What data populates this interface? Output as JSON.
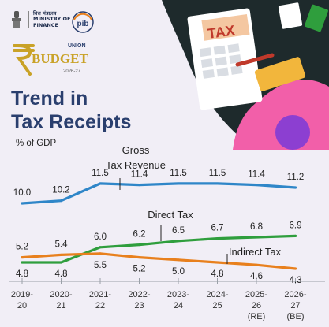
{
  "header": {
    "ministry_hindi": "वित्त मंत्रालय",
    "ministry_line1": "MINISTRY OF",
    "ministry_line2": "FINANCE",
    "pib_label": "pib",
    "budget_small": "UNION",
    "budget_word": "BUDGET",
    "budget_year": "2026-27",
    "title_line1": "Trend in",
    "title_line2": "Tax Receipts",
    "unit": "% of GDP",
    "art_text": "TAX"
  },
  "colors": {
    "title": "#2a3f6e",
    "gross": "#2f86c8",
    "direct": "#2f9e3d",
    "indirect": "#e8801d",
    "pink": "#f25fa9",
    "purple": "#8c3fd1",
    "background": "#f1eef6"
  },
  "chart_data": {
    "type": "line",
    "categories": [
      [
        "2019-",
        "20"
      ],
      [
        "2020-",
        "21"
      ],
      [
        "2021-",
        "22"
      ],
      [
        "2022-",
        "23"
      ],
      [
        "2023-",
        "24"
      ],
      [
        "2024-",
        "25"
      ],
      [
        "2025-",
        "26",
        "(RE)"
      ],
      [
        "2026-",
        "27",
        "(BE)"
      ]
    ],
    "series": [
      {
        "name": "Gross Tax Revenue",
        "label_lines": [
          "Gross",
          "Tax Revenue"
        ],
        "color": "#2f86c8",
        "values": [
          10.0,
          10.2,
          11.5,
          11.4,
          11.5,
          11.5,
          11.4,
          11.2
        ],
        "labels": [
          "10.0",
          "10.2",
          "11.5",
          "11.4",
          "11.5",
          "11.5",
          "11.4",
          "11.2"
        ]
      },
      {
        "name": "Direct Tax",
        "label_lines": [
          "Direct Tax"
        ],
        "color": "#2f9e3d",
        "values": [
          4.8,
          4.8,
          6.0,
          6.2,
          6.5,
          6.7,
          6.8,
          6.9
        ],
        "labels": [
          "4.8",
          "4.8",
          "6.0",
          "6.2",
          "6.5",
          "6.7",
          "6.8",
          "6.9"
        ]
      },
      {
        "name": "Indirect Tax",
        "label_lines": [
          "Indirect Tax"
        ],
        "color": "#e8801d",
        "values": [
          5.2,
          5.4,
          5.5,
          5.2,
          5.0,
          4.8,
          4.6,
          4.3
        ],
        "labels": [
          "5.2",
          "5.4",
          "5.5",
          "5.2",
          "5.0",
          "4.8",
          "4.6",
          "4.3"
        ]
      }
    ],
    "grid": false,
    "legend": "inline labels"
  }
}
